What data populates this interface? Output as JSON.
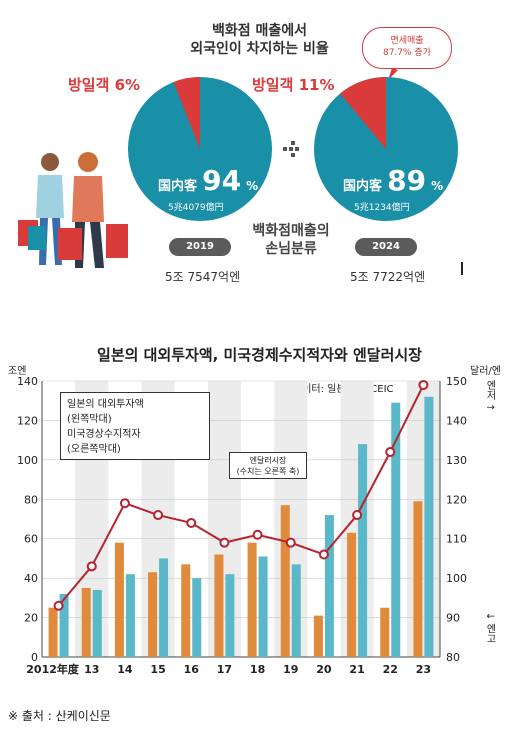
{
  "infographic": {
    "title_line1": "백화점 매출에서",
    "title_line2": "외국인이 차지하는 비율",
    "center_caption_line1": "백화점매출의",
    "center_caption_line2": "손님분류",
    "callout_line1": "면세매출",
    "callout_line2": "87.7% 증가",
    "colors": {
      "domestic": "#1a8fa8",
      "visitor": "#d93a3a",
      "pill": "#5b5b5b"
    },
    "pies": [
      {
        "year": "2019",
        "visitor_label": "방일객 6%",
        "visitor_pct": 6,
        "domestic_label": "国内客",
        "domestic_num": "94",
        "pct_sign": "%",
        "domestic_amount": "5兆4079億円",
        "total": "5조 7547억엔"
      },
      {
        "year": "2024",
        "visitor_label": "방일객 11%",
        "visitor_pct": 11,
        "domestic_label": "国内客",
        "domestic_num": "89",
        "pct_sign": "%",
        "domestic_amount": "5兆1234億円",
        "total": "5조 7722억엔"
      }
    ]
  },
  "chart_data": {
    "type": "bar",
    "title": "일본의 대외투자액, 미국경제수지적자와 엔달러시장",
    "source": "데이터: 일본은행, CEIC",
    "categories": [
      "2012年度",
      "13",
      "14",
      "15",
      "16",
      "17",
      "18",
      "19",
      "20",
      "21",
      "22",
      "23"
    ],
    "left_unit": "조엔",
    "right_unit": "달러/엔",
    "left_ylim": [
      0,
      140
    ],
    "left_ticks": [
      0,
      20,
      40,
      60,
      80,
      100,
      120,
      140
    ],
    "right_ylim": [
      80,
      150
    ],
    "right_ticks": [
      80,
      90,
      100,
      110,
      120,
      130,
      140,
      150
    ],
    "right_axis_top_note": "엔저 ↑",
    "right_axis_bottom_note": "↓ 엔고",
    "legend_box_lines": [
      "일본의 대외투자액",
      "(왼쪽막대)",
      "미국경상수지적자",
      "(오른쪽막대)"
    ],
    "line_callout_lines": [
      "엔달러시장",
      "(수치는 오른쪽 축)"
    ],
    "series": [
      {
        "name": "일본의 대외투자액",
        "axis": "left",
        "color": "#e08a3c",
        "values": [
          25,
          35,
          58,
          43,
          47,
          52,
          58,
          77,
          21,
          63,
          25,
          79
        ]
      },
      {
        "name": "미국경상수지적자",
        "axis": "left",
        "color": "#5bb8c8",
        "values": [
          32,
          34,
          42,
          50,
          40,
          42,
          51,
          47,
          72,
          108,
          129,
          132
        ]
      },
      {
        "name": "엔달러시장",
        "axis": "right",
        "type": "line",
        "color": "#b5242e",
        "values": [
          93,
          103,
          119,
          116,
          114,
          109,
          111,
          109,
          106,
          116,
          132,
          149
        ]
      }
    ],
    "grid": true
  },
  "footer": "※ 출처 : 산케이신문"
}
